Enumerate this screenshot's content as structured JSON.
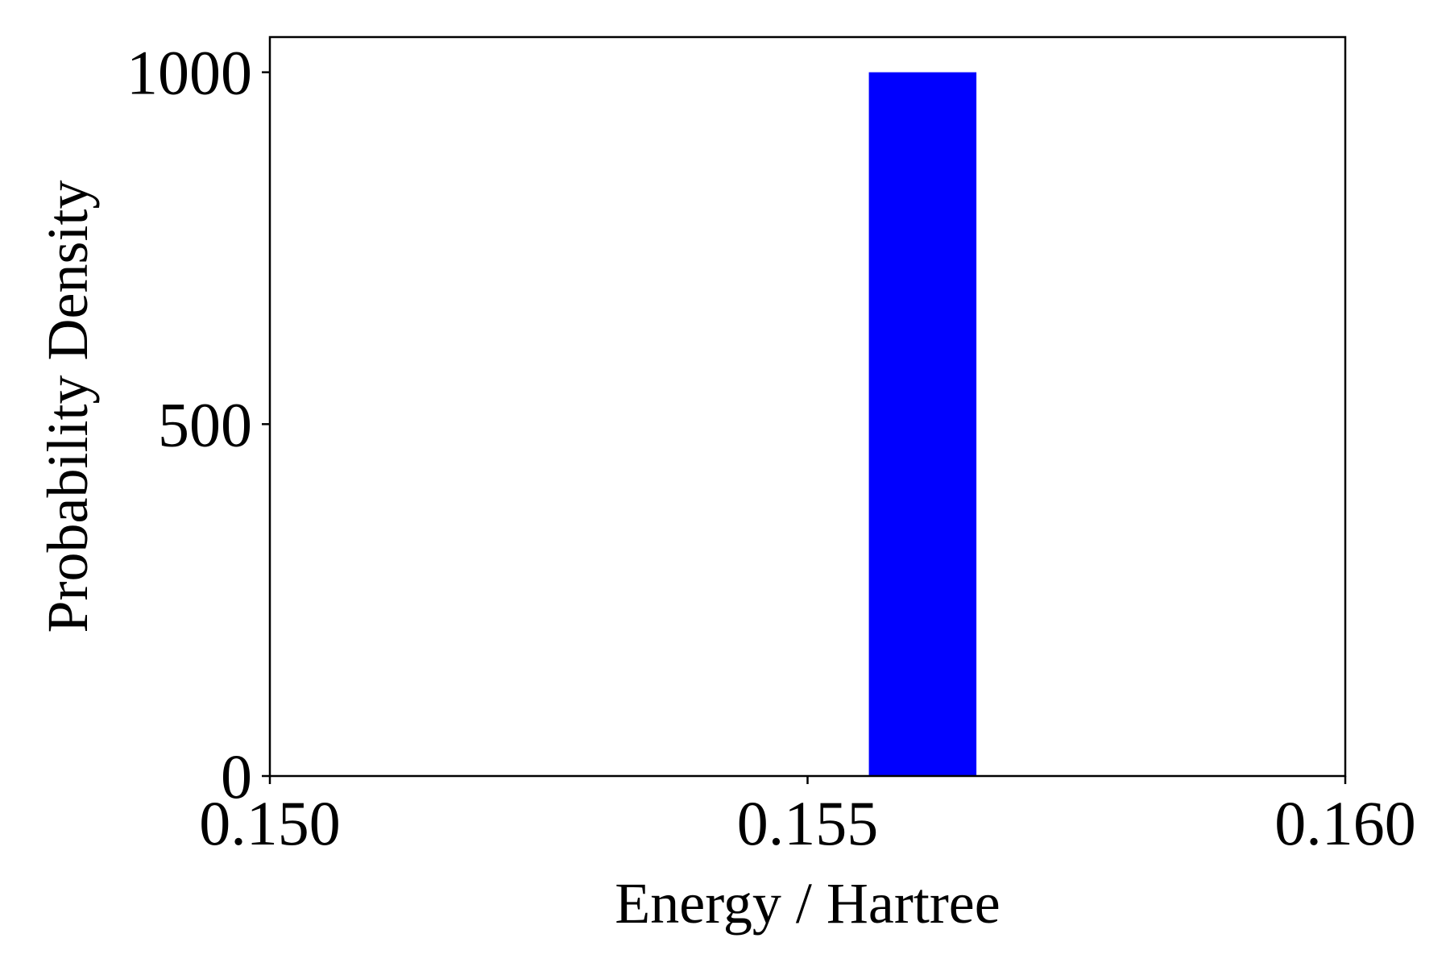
{
  "chart_data": {
    "type": "bar",
    "title": "",
    "xlabel": "Energy / Hartree",
    "ylabel": "Probability Density",
    "xlim": [
      0.15,
      0.16
    ],
    "ylim": [
      0,
      1050
    ],
    "grid": false,
    "bar_color": "#0000ff",
    "bins": [
      {
        "x_start": 0.15557,
        "x_end": 0.15657,
        "value": 1000
      }
    ],
    "x_ticks": [
      {
        "value": 0.15,
        "label": "0.150"
      },
      {
        "value": 0.155,
        "label": "0.155"
      },
      {
        "value": 0.16,
        "label": "0.160"
      }
    ],
    "y_ticks": [
      {
        "value": 0,
        "label": "0"
      },
      {
        "value": 500,
        "label": "500"
      },
      {
        "value": 1000,
        "label": "1000"
      }
    ]
  }
}
